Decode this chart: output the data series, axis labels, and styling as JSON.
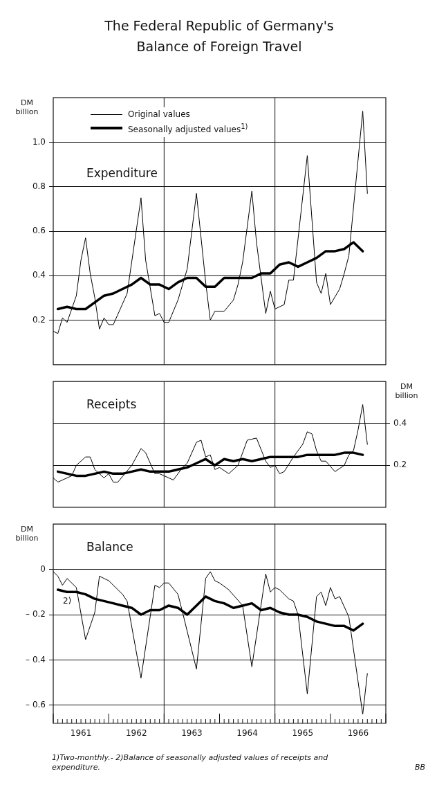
{
  "chart_data": [
    {
      "type": "line",
      "title": "The Federal Republic of Germany's Balance of Foreign Travel",
      "subtitle": "Expenditure",
      "ylabel": "DM billion",
      "xlim": [
        "1961-01",
        "1967-01"
      ],
      "ylim": [
        0,
        1.2
      ],
      "yticks": [
        0.2,
        0.4,
        0.6,
        0.8,
        {
          "value": 1,
          "label": "1.0"
        }
      ],
      "grid": "y",
      "legend": "top left",
      "marker": "none",
      "tick_labels": "y",
      "ref_lines": [
        {
          "axis": "x",
          "value": "1963-01"
        },
        {
          "axis": "x",
          "value": "1965-01"
        }
      ],
      "series": [
        {
          "name": "Original values",
          "color": "#000000",
          "x": [
            "1961-01",
            "1961-02",
            "1961-03",
            "1961-04",
            "1961-06",
            "1961-07",
            "1961-08",
            "1961-09",
            "1961-10",
            "1961-11",
            "1961-12",
            "1962-01",
            "1962-02",
            "1962-05",
            "1962-08",
            "1962-09",
            "1962-11",
            "1962-12",
            "1963-01",
            "1963-02",
            "1963-04",
            "1963-06",
            "1963-08",
            "1963-10",
            "1963-11",
            "1963-12",
            "1964-02",
            "1964-04",
            "1964-05",
            "1964-06",
            "1964-08",
            "1964-09",
            "1964-11",
            "1964-12",
            "1965-01",
            "1965-03",
            "1965-04",
            "1965-05",
            "1965-08",
            "1965-10",
            "1965-11",
            "1965-12",
            "1966-01",
            "1966-03",
            "1966-04",
            "1966-05",
            "1966-08",
            "1966-09"
          ],
          "values": [
            0.15,
            0.14,
            0.21,
            0.19,
            0.31,
            0.47,
            0.57,
            0.41,
            0.3,
            0.16,
            0.21,
            0.18,
            0.18,
            0.32,
            0.75,
            0.47,
            0.22,
            0.23,
            0.19,
            0.19,
            0.29,
            0.43,
            0.77,
            0.37,
            0.2,
            0.24,
            0.24,
            0.29,
            0.36,
            0.46,
            0.78,
            0.55,
            0.23,
            0.33,
            0.25,
            0.27,
            0.38,
            0.38,
            0.94,
            0.37,
            0.32,
            0.41,
            0.27,
            0.34,
            0.41,
            0.49,
            1.14,
            0.77
          ]
        },
        {
          "name": "Seasonally adjusted values$^{1)}$",
          "color": "#000000",
          "x": [
            "1961-02",
            "1961-04",
            "1961-06",
            "1961-08",
            "1961-10",
            "1961-12",
            "1962-02",
            "1962-04",
            "1962-06",
            "1962-08",
            "1962-10",
            "1962-12",
            "1963-02",
            "1963-04",
            "1963-06",
            "1963-08",
            "1963-10",
            "1963-12",
            "1964-02",
            "1964-04",
            "1964-06",
            "1964-08",
            "1964-10",
            "1964-12",
            "1965-02",
            "1965-04",
            "1965-06",
            "1965-08",
            "1965-10",
            "1965-12",
            "1966-02",
            "1966-04",
            "1966-06",
            "1966-08"
          ],
          "values": [
            0.25,
            0.26,
            0.25,
            0.25,
            0.28,
            0.31,
            0.32,
            0.34,
            0.36,
            0.39,
            0.36,
            0.36,
            0.34,
            0.37,
            0.39,
            0.39,
            0.35,
            0.35,
            0.39,
            0.39,
            0.39,
            0.39,
            0.41,
            0.41,
            0.45,
            0.46,
            0.44,
            0.46,
            0.48,
            0.51,
            0.51,
            0.52,
            0.55,
            0.51
          ]
        }
      ]
    },
    {
      "type": "line",
      "subtitle": "Receipts",
      "y2label": "DM billion",
      "xlim": [
        "1961-01",
        "1967-01"
      ],
      "y2lim": [
        0,
        0.6
      ],
      "y2ticks": [
        0.2,
        0.4
      ],
      "grid": "y",
      "marker": "none",
      "tick_labels": "y",
      "ref_lines": [
        {
          "axis": "x",
          "value": "1963-01"
        },
        {
          "axis": "x",
          "value": "1965-01"
        }
      ],
      "series": [
        {
          "color": "#000000",
          "axis": "y2",
          "x": [
            "1961-01",
            "1961-02",
            "1961-05",
            "1961-06",
            "1961-08",
            "1961-09",
            "1961-10",
            "1961-12",
            "1962-01",
            "1962-02",
            "1962-03",
            "1962-06",
            "1962-08",
            "1962-09",
            "1962-10",
            "1962-11",
            "1962-12",
            "1963-01",
            "1963-03",
            "1963-05",
            "1963-06",
            "1963-08",
            "1963-09",
            "1963-10",
            "1963-11",
            "1963-12",
            "1964-01",
            "1964-03",
            "1964-05",
            "1964-06",
            "1964-07",
            "1964-09",
            "1964-11",
            "1964-12",
            "1965-01",
            "1965-02",
            "1965-03",
            "1965-05",
            "1965-07",
            "1965-08",
            "1965-09",
            "1965-10",
            "1965-11",
            "1965-12",
            "1966-02",
            "1966-04",
            "1966-05",
            "1966-06",
            "1966-07",
            "1966-08",
            "1966-09"
          ],
          "values": [
            0.14,
            0.12,
            0.15,
            0.2,
            0.24,
            0.24,
            0.18,
            0.14,
            0.16,
            0.12,
            0.12,
            0.2,
            0.28,
            0.26,
            0.21,
            0.16,
            0.16,
            0.15,
            0.13,
            0.19,
            0.21,
            0.31,
            0.32,
            0.24,
            0.25,
            0.18,
            0.19,
            0.16,
            0.2,
            0.26,
            0.32,
            0.33,
            0.22,
            0.19,
            0.2,
            0.16,
            0.17,
            0.24,
            0.3,
            0.36,
            0.35,
            0.27,
            0.22,
            0.22,
            0.17,
            0.2,
            0.25,
            0.27,
            0.37,
            0.49,
            0.3
          ]
        },
        {
          "color": "#000000",
          "axis": "y2",
          "x": [
            "1961-02",
            "1961-04",
            "1961-06",
            "1961-08",
            "1961-10",
            "1961-12",
            "1962-02",
            "1962-04",
            "1962-06",
            "1962-08",
            "1962-10",
            "1962-12",
            "1963-02",
            "1963-04",
            "1963-06",
            "1963-08",
            "1963-10",
            "1963-12",
            "1964-02",
            "1964-04",
            "1964-06",
            "1964-08",
            "1964-10",
            "1964-12",
            "1965-02",
            "1965-04",
            "1965-06",
            "1965-08",
            "1965-10",
            "1965-12",
            "1966-02",
            "1966-04",
            "1966-06",
            "1966-08"
          ],
          "values": [
            0.17,
            0.16,
            0.15,
            0.15,
            0.16,
            0.17,
            0.16,
            0.16,
            0.17,
            0.18,
            0.17,
            0.17,
            0.17,
            0.18,
            0.19,
            0.21,
            0.23,
            0.2,
            0.23,
            0.22,
            0.23,
            0.22,
            0.23,
            0.24,
            0.24,
            0.24,
            0.24,
            0.25,
            0.25,
            0.25,
            0.25,
            0.26,
            0.26,
            0.25
          ]
        }
      ]
    },
    {
      "type": "line",
      "subtitle": "Balance",
      "ylabel": "DM billion",
      "xlim": [
        "1961-01",
        "1967-01"
      ],
      "ylim": [
        -0.68,
        0.2
      ],
      "yticks": [
        0,
        {
          "value": -0.2,
          "label": "– 0.2"
        },
        {
          "value": -0.4,
          "label": "– 0.4"
        },
        {
          "value": -0.6,
          "label": "– 0.6"
        }
      ],
      "grid": "y",
      "marker": "none",
      "xticks": [
        {
          "value": "1961-01",
          "label": null
        },
        {
          "value": "1961-02",
          "label": null
        },
        {
          "value": "1961-03",
          "label": null
        },
        {
          "value": "1961-04",
          "label": null
        },
        {
          "value": "1961-05",
          "label": null
        },
        {
          "value": "1961-06",
          "label": null
        },
        {
          "value": "1961-07",
          "label": "1961"
        },
        {
          "value": "1961-08",
          "label": null
        },
        {
          "value": "1961-09",
          "label": null
        },
        {
          "value": "1961-10",
          "label": null
        },
        {
          "value": "1961-11",
          "label": null
        },
        {
          "value": "1961-12",
          "label": null
        },
        {
          "value": "1962-01",
          "label": null
        },
        {
          "value": "1962-02",
          "label": null
        },
        {
          "value": "1962-03",
          "label": null
        },
        {
          "value": "1962-04",
          "label": null
        },
        {
          "value": "1962-05",
          "label": null
        },
        {
          "value": "1962-06",
          "label": null
        },
        {
          "value": "1962-07",
          "label": "1962"
        },
        {
          "value": "1962-08",
          "label": null
        },
        {
          "value": "1962-09",
          "label": null
        },
        {
          "value": "1962-10",
          "label": null
        },
        {
          "value": "1962-11",
          "label": null
        },
        {
          "value": "1962-12",
          "label": null
        },
        {
          "value": "1963-01",
          "label": null
        },
        {
          "value": "1963-02",
          "label": null
        },
        {
          "value": "1963-03",
          "label": null
        },
        {
          "value": "1963-04",
          "label": null
        },
        {
          "value": "1963-05",
          "label": null
        },
        {
          "value": "1963-06",
          "label": null
        },
        {
          "value": "1963-07",
          "label": "1963"
        },
        {
          "value": "1963-08",
          "label": null
        },
        {
          "value": "1963-09",
          "label": null
        },
        {
          "value": "1963-10",
          "label": null
        },
        {
          "value": "1963-11",
          "label": null
        },
        {
          "value": "1963-12",
          "label": null
        },
        {
          "value": "1964-01",
          "label": null
        },
        {
          "value": "1964-02",
          "label": null
        },
        {
          "value": "1964-03",
          "label": null
        },
        {
          "value": "1964-04",
          "label": null
        },
        {
          "value": "1964-05",
          "label": null
        },
        {
          "value": "1964-06",
          "label": null
        },
        {
          "value": "1964-07",
          "label": "1964"
        },
        {
          "value": "1964-08",
          "label": null
        },
        {
          "value": "1964-09",
          "label": null
        },
        {
          "value": "1964-10",
          "label": null
        },
        {
          "value": "1964-11",
          "label": null
        },
        {
          "value": "1964-12",
          "label": null
        },
        {
          "value": "1965-01",
          "label": null
        },
        {
          "value": "1965-02",
          "label": null
        },
        {
          "value": "1965-03",
          "label": null
        },
        {
          "value": "1965-04",
          "label": null
        },
        {
          "value": "1965-05",
          "label": null
        },
        {
          "value": "1965-06",
          "label": null
        },
        {
          "value": "1965-07",
          "label": "1965"
        },
        {
          "value": "1965-08",
          "label": null
        },
        {
          "value": "1965-09",
          "label": null
        },
        {
          "value": "1965-10",
          "label": null
        },
        {
          "value": "1965-11",
          "label": null
        },
        {
          "value": "1965-12",
          "label": null
        },
        {
          "value": "1966-01",
          "label": null
        },
        {
          "value": "1966-02",
          "label": null
        },
        {
          "value": "1966-03",
          "label": null
        },
        {
          "value": "1966-04",
          "label": null
        },
        {
          "value": "1966-05",
          "label": null
        },
        {
          "value": "1966-06",
          "label": null
        },
        {
          "value": "1966-07",
          "label": "1966"
        },
        {
          "value": "1966-08",
          "label": null
        },
        {
          "value": "1966-09",
          "label": null
        },
        {
          "value": "1966-10",
          "label": null
        },
        {
          "value": "1966-11",
          "label": null
        },
        {
          "value": "1966-12",
          "label": null
        },
        {
          "value": "1967-01",
          "label": null
        }
      ],
      "ref_lines": [
        {
          "axis": "x",
          "value": "1963-01"
        },
        {
          "axis": "x",
          "value": "1965-01"
        }
      ],
      "annotations": [
        {
          "text": "2)",
          "x": "1961-04",
          "y": -0.1
        },
        "1)Two-monthly.- 2)Balance of seasonally adjusted values of receipts and expenditure.",
        "BB"
      ],
      "series": [
        {
          "color": "#000000",
          "x": [
            "1961-01",
            "1961-02",
            "1961-03",
            "1961-04",
            "1961-06",
            "1961-08",
            "1961-10",
            "1961-11",
            "1961-12",
            "1962-01",
            "1962-04",
            "1962-05",
            "1962-08",
            "1962-11",
            "1962-12",
            "1963-01",
            "1963-02",
            "1963-04",
            "1963-05",
            "1963-08",
            "1963-10",
            "1963-11",
            "1963-12",
            "1964-01",
            "1964-03",
            "1964-06",
            "1964-08",
            "1964-11",
            "1964-12",
            "1965-01",
            "1965-02",
            "1965-04",
            "1965-05",
            "1965-06",
            "1965-08",
            "1965-10",
            "1965-11",
            "1965-12",
            "1966-01",
            "1966-02",
            "1966-03",
            "1966-05",
            "1966-08",
            "1966-09"
          ],
          "values": [
            -0.01,
            -0.03,
            -0.07,
            -0.04,
            -0.08,
            -0.31,
            -0.19,
            -0.03,
            -0.04,
            -0.05,
            -0.11,
            -0.14,
            -0.48,
            -0.07,
            -0.08,
            -0.06,
            -0.06,
            -0.11,
            -0.19,
            -0.44,
            -0.04,
            -0.01,
            -0.05,
            -0.06,
            -0.09,
            -0.16,
            -0.43,
            -0.02,
            -0.1,
            -0.08,
            -0.09,
            -0.13,
            -0.14,
            -0.2,
            -0.55,
            -0.12,
            -0.1,
            -0.16,
            -0.08,
            -0.13,
            -0.12,
            -0.21,
            -0.64,
            -0.46
          ]
        },
        {
          "color": "#000000",
          "x": [
            "1961-02",
            "1961-04",
            "1961-06",
            "1961-08",
            "1961-10",
            "1961-12",
            "1962-02",
            "1962-04",
            "1962-06",
            "1962-08",
            "1962-10",
            "1962-12",
            "1963-02",
            "1963-04",
            "1963-06",
            "1963-08",
            "1963-10",
            "1963-12",
            "1964-02",
            "1964-04",
            "1964-06",
            "1964-08",
            "1964-10",
            "1964-12",
            "1965-02",
            "1965-04",
            "1965-06",
            "1965-08",
            "1965-10",
            "1965-12",
            "1966-02",
            "1966-04",
            "1966-06",
            "1966-08"
          ],
          "values": [
            -0.09,
            -0.1,
            -0.1,
            -0.11,
            -0.13,
            -0.14,
            -0.15,
            -0.16,
            -0.17,
            -0.2,
            -0.18,
            -0.18,
            -0.16,
            -0.17,
            -0.2,
            -0.16,
            -0.12,
            -0.14,
            -0.15,
            -0.17,
            -0.16,
            -0.15,
            -0.18,
            -0.17,
            -0.19,
            -0.2,
            -0.2,
            -0.21,
            -0.23,
            -0.24,
            -0.25,
            -0.25,
            -0.27,
            -0.24
          ]
        }
      ]
    }
  ]
}
